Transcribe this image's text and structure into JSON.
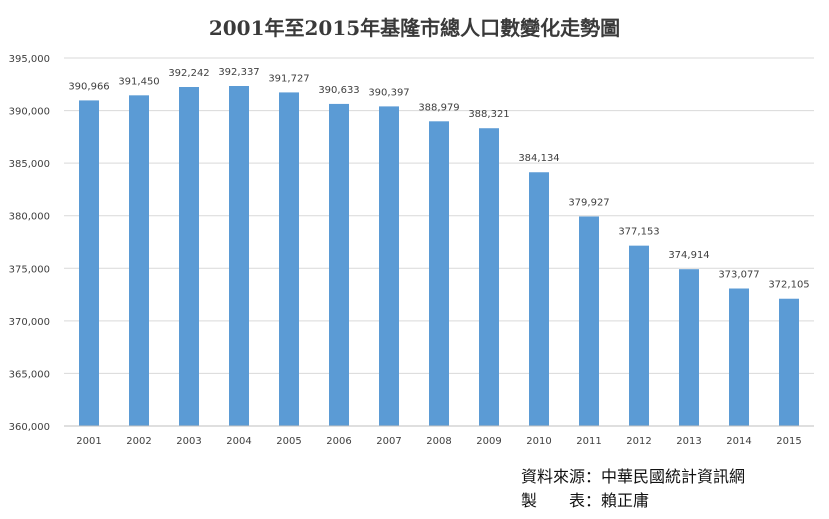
{
  "chart_data": {
    "type": "bar",
    "title": "2001年至2015年基隆市總人口數變化走勢圖",
    "categories": [
      "2001",
      "2002",
      "2003",
      "2004",
      "2005",
      "2006",
      "2007",
      "2008",
      "2009",
      "2010",
      "2011",
      "2012",
      "2013",
      "2014",
      "2015"
    ],
    "values": [
      390966,
      391450,
      392242,
      392337,
      391727,
      390633,
      390397,
      388979,
      388321,
      384134,
      379927,
      377153,
      374914,
      373077,
      372105
    ],
    "data_labels": [
      "390,966",
      "391,450",
      "392,242",
      "392,337",
      "391,727",
      "390,633",
      "390,397",
      "388,979",
      "388,321",
      "384,134",
      "379,927",
      "377,153",
      "374,914",
      "373,077",
      "372,105"
    ],
    "ylim": [
      360000,
      395000
    ],
    "yticks": [
      360000,
      365000,
      370000,
      375000,
      380000,
      385000,
      390000,
      395000
    ],
    "ytick_labels": [
      "360,000",
      "365,000",
      "370,000",
      "375,000",
      "380,000",
      "385,000",
      "390,000",
      "395,000"
    ],
    "grid": true,
    "bar_color": "#5b9bd5",
    "grid_color": "#d9d9d9"
  },
  "credits": {
    "source": "資料來源：中華民國統計資訊網",
    "author": "製　　表：賴正庸"
  }
}
